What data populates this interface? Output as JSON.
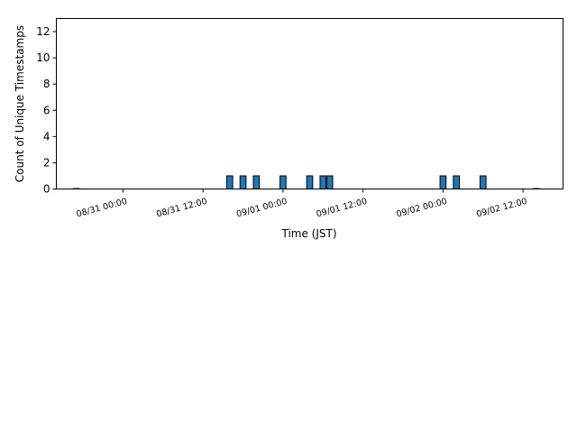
{
  "chart_data": {
    "type": "bar",
    "title": "",
    "xlabel": "Time (JST)",
    "ylabel": "Count of Unique Timestamps",
    "ylim": [
      0,
      13
    ],
    "xlim": [
      "2024-08-30T14:00",
      "2024-09-02T18:00"
    ],
    "grid": false,
    "bar_color": "#1f77b4",
    "edge_color": "#000000",
    "bin_hours": 1,
    "y_ticks": [
      0,
      2,
      4,
      6,
      8,
      10,
      12
    ],
    "x_ticks": [
      {
        "t": "2024-08-31T00:00",
        "label": "08/31 00:00"
      },
      {
        "t": "2024-08-31T12:00",
        "label": "08/31 12:00"
      },
      {
        "t": "2024-09-01T00:00",
        "label": "09/01 00:00"
      },
      {
        "t": "2024-09-01T12:00",
        "label": "09/01 12:00"
      },
      {
        "t": "2024-09-02T00:00",
        "label": "09/02 00:00"
      },
      {
        "t": "2024-09-02T12:00",
        "label": "09/02 12:00"
      }
    ],
    "series": [
      {
        "x": [
          "2024-08-30T17:00",
          "2024-08-31T16:00",
          "2024-08-31T18:00",
          "2024-08-31T20:00",
          "2024-09-01T00:00",
          "2024-09-01T04:00",
          "2024-09-01T06:00",
          "2024-09-01T07:00",
          "2024-09-02T00:00",
          "2024-09-02T02:00",
          "2024-09-02T06:00",
          "2024-09-02T14:00"
        ],
        "values": [
          0,
          1,
          1,
          1,
          1,
          1,
          1,
          1,
          1,
          1,
          1,
          0
        ]
      }
    ]
  }
}
